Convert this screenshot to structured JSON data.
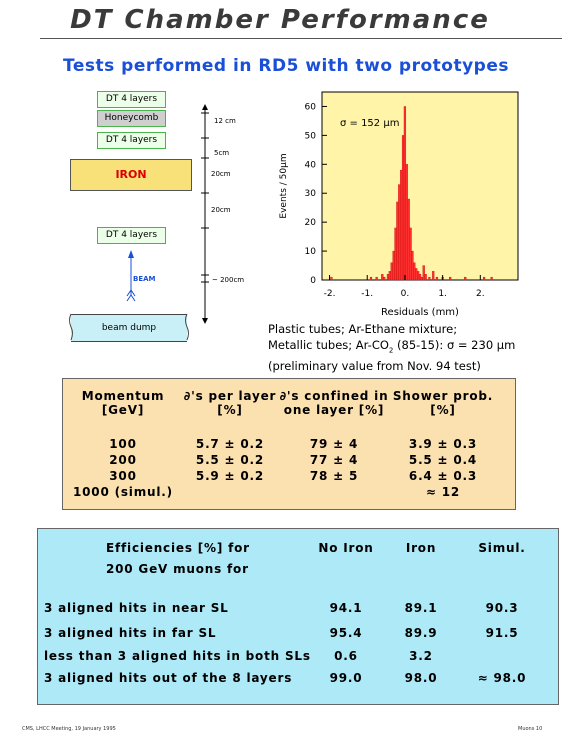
{
  "title": "DT Chamber Performance",
  "subtitle": "Tests performed in RD5 with two prototypes",
  "setup": {
    "layers": [
      "DT 4 layers",
      "Honeycomb",
      "DT 4 layers"
    ],
    "iron": "IRON",
    "dt_far": "DT 4 layers",
    "beam": "BEAM",
    "beam_dump": "beam dump",
    "distances": [
      "12 cm",
      "5cm",
      "20cm",
      "20cm",
      "~ 200cm"
    ]
  },
  "chart_data": {
    "type": "bar",
    "title": "",
    "annotation": "σ = 152 μm",
    "xlabel": "Residuals (mm)",
    "ylabel": "Events / 50μm",
    "xlim": [
      -2.2,
      3.0
    ],
    "ylim": [
      0,
      65
    ],
    "xticks": [
      "-2.",
      "-1.",
      "0.",
      "1.",
      "2."
    ],
    "yticks": [
      "0",
      "10",
      "20",
      "30",
      "40",
      "50",
      "60"
    ],
    "bin_width": 0.05,
    "x": [
      -1.95,
      -0.9,
      -0.75,
      -0.6,
      -0.55,
      -0.45,
      -0.4,
      -0.35,
      -0.3,
      -0.25,
      -0.2,
      -0.15,
      -0.1,
      -0.05,
      0.0,
      0.05,
      0.1,
      0.15,
      0.2,
      0.25,
      0.3,
      0.35,
      0.4,
      0.45,
      0.5,
      0.55,
      0.65,
      0.75,
      0.85,
      1.0,
      1.2,
      1.6,
      2.1,
      2.3
    ],
    "values": [
      1,
      1,
      1,
      2,
      1,
      2,
      3,
      6,
      10,
      18,
      27,
      33,
      38,
      50,
      60,
      40,
      28,
      18,
      10,
      6,
      4,
      3,
      2,
      1,
      5,
      2,
      1,
      3,
      1,
      1,
      1,
      1,
      1,
      1
    ],
    "color": "#ff3030"
  },
  "caption": {
    "line1": "Plastic tubes; Ar-Ethane mixture;",
    "line2a": "Metallic tubes; Ar-CO",
    "line2sub": "2",
    "line2b": " (85-15): σ = 230 μm",
    "line3": "(preliminary value from Nov. 94 test)"
  },
  "table1": {
    "headers": [
      [
        "Momentum",
        "[GeV]"
      ],
      [
        "∂'s per layer",
        "[%]"
      ],
      [
        "∂'s confined in",
        "one layer [%]"
      ],
      [
        "Shower prob.",
        "[%]"
      ]
    ],
    "rows": [
      [
        "100",
        "5.7 ± 0.2",
        "79 ± 4",
        "3.9 ± 0.3"
      ],
      [
        "200",
        "5.5 ± 0.2",
        "77 ± 4",
        "5.5 ± 0.4"
      ],
      [
        "300",
        "5.9 ± 0.2",
        "78 ± 5",
        "6.4 ± 0.3"
      ],
      [
        "1000 (simul.)",
        "",
        "",
        "≈ 12"
      ]
    ]
  },
  "table2": {
    "header_line1": "Efficiencies [%] for",
    "header_line2": "200 GeV muons for",
    "col_headers": [
      "No Iron",
      "Iron",
      "Simul."
    ],
    "rows": [
      [
        "3 aligned hits in near SL",
        "94.1",
        "89.1",
        "90.3"
      ],
      [
        "3 aligned hits in far SL",
        "95.4",
        "89.9",
        "91.5"
      ],
      [
        "less than 3 aligned hits in both SLs",
        "0.6",
        "3.2",
        ""
      ],
      [
        "3 aligned hits out of the 8 layers",
        "99.0",
        "98.0",
        "≈ 98.0"
      ]
    ]
  },
  "footer": {
    "left": "CMS, LHCC Meeting, 19 January 1995",
    "right": "Muons   10"
  }
}
